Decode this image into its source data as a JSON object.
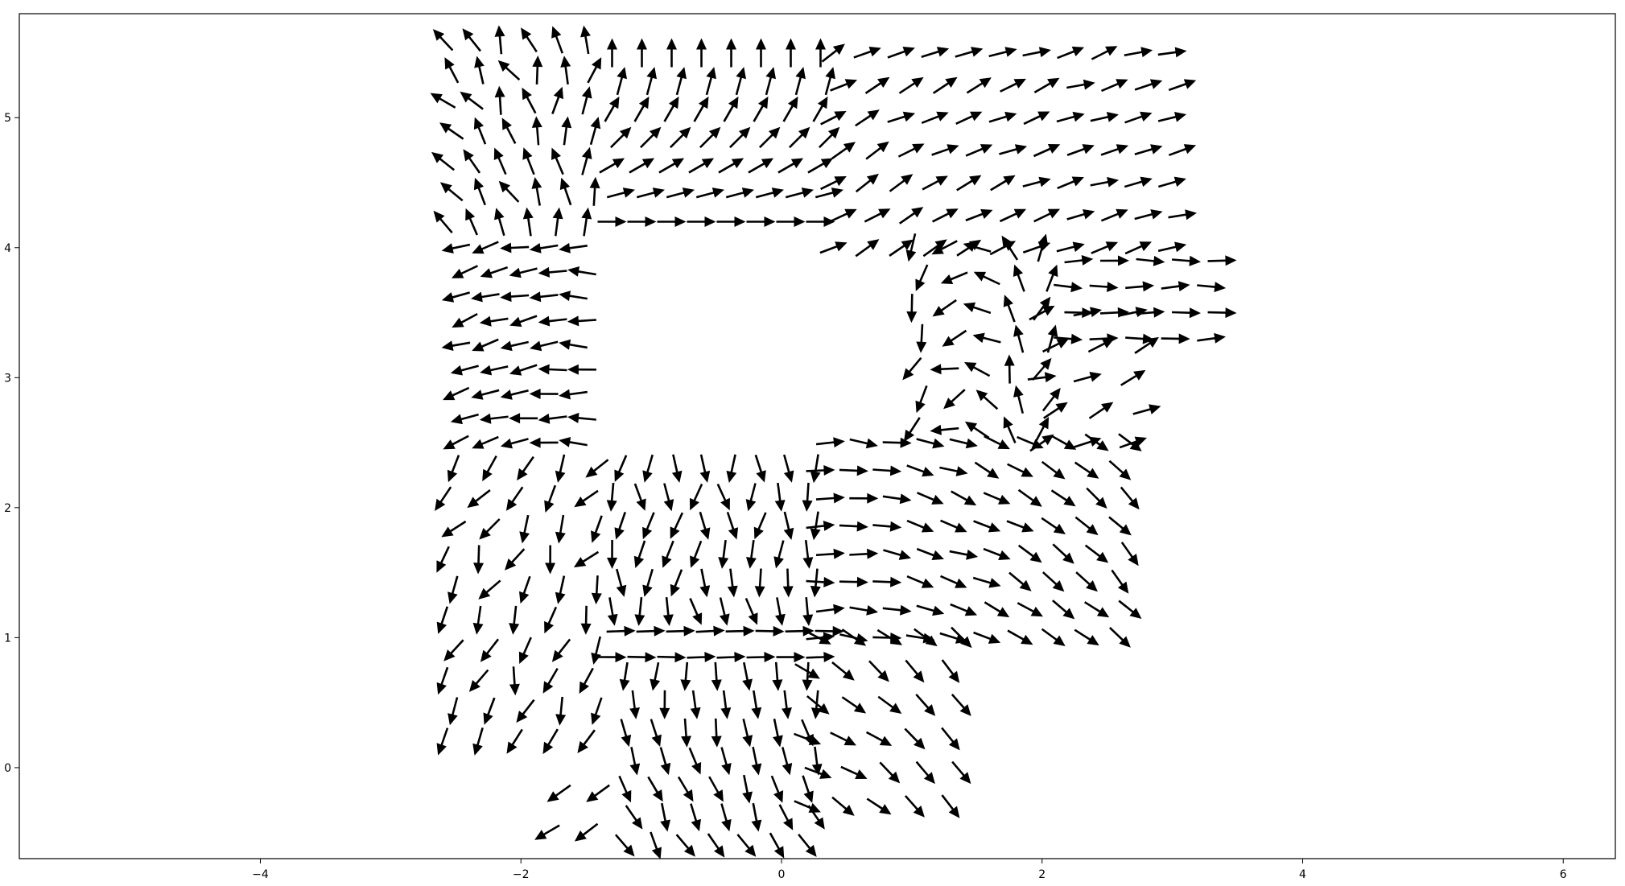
{
  "chart_data": {
    "type": "quiver",
    "title": "",
    "xlabel": "",
    "ylabel": "",
    "xlim": [
      -5.85,
      6.4
    ],
    "ylim": [
      -0.7,
      5.8
    ],
    "xticks": [
      -4,
      -2,
      0,
      2,
      4,
      6
    ],
    "yticks": [
      0,
      1,
      2,
      3,
      4,
      5
    ],
    "xtick_labels": [
      "−4",
      "−2",
      "0",
      "2",
      "4",
      "6"
    ],
    "ytick_labels": [
      "0",
      "1",
      "2",
      "3",
      "4",
      "5"
    ],
    "grid": false,
    "arrow_color": "#000000",
    "regions": [
      {
        "name": "top-center",
        "xlim": [
          -1.3,
          0.3
        ],
        "ylim": [
          4.2,
          5.5
        ],
        "rows": 7,
        "cols": 8,
        "angle_start": 0,
        "angle_end": 90,
        "angle_axis": "y"
      },
      {
        "name": "top-left",
        "xlim": [
          -2.6,
          -1.5
        ],
        "ylim": [
          4.2,
          5.6
        ],
        "rows": 7,
        "cols": 6,
        "angle_start": 135,
        "angle_end": 80,
        "angle_axis": "x",
        "jitter": 25
      },
      {
        "name": "left-band",
        "xlim": [
          -2.5,
          -1.6
        ],
        "ylim": [
          2.5,
          4.0
        ],
        "rows": 9,
        "cols": 5,
        "angle_start": 200,
        "angle_end": 180,
        "angle_axis": "x",
        "jitter": 10
      },
      {
        "name": "upper-right-fan",
        "xlim": [
          0.4,
          3.0
        ],
        "ylim": [
          4.0,
          5.5
        ],
        "rows": 7,
        "cols": 11,
        "angle_start": 30,
        "angle_end": 15,
        "angle_axis": "x",
        "jitter": 10
      },
      {
        "name": "right-lobe",
        "xlim": [
          2.2,
          3.3
        ],
        "ylim": [
          3.3,
          3.9
        ],
        "rows": 4,
        "cols": 5,
        "angle_start": 0,
        "angle_end": 0,
        "angle_axis": "x",
        "jitter": 8
      },
      {
        "name": "inner-curve",
        "xlim": [
          1.0,
          2.0
        ],
        "ylim": [
          2.6,
          4.0
        ],
        "rows": 7,
        "cols": 5,
        "angle_start": 250,
        "angle_end": 60,
        "angle_axis": "x",
        "jitter": 20
      },
      {
        "name": "right-edge",
        "xlim": [
          2.0,
          2.7
        ],
        "ylim": [
          2.5,
          3.5
        ],
        "rows": 5,
        "cols": 3,
        "angle_start": 20,
        "angle_end": 20,
        "angle_axis": "x",
        "jitter": 15
      },
      {
        "name": "mid-right-fan",
        "xlim": [
          0.3,
          2.6
        ],
        "ylim": [
          1.0,
          2.5
        ],
        "rows": 8,
        "cols": 10,
        "angle_start": 0,
        "angle_end": -45,
        "angle_axis": "x",
        "jitter": 10
      },
      {
        "name": "lower-right",
        "xlim": [
          0.2,
          1.3
        ],
        "ylim": [
          -0.3,
          1.0
        ],
        "rows": 6,
        "cols": 5,
        "angle_start": -30,
        "angle_end": -45,
        "angle_axis": "x",
        "jitter": 10
      },
      {
        "name": "center-bottom-down",
        "xlim": [
          -1.3,
          0.2
        ],
        "ylim": [
          1.2,
          2.3
        ],
        "rows": 6,
        "cols": 8,
        "angle_start": -90,
        "angle_end": -90,
        "angle_axis": "x",
        "jitter": 25
      },
      {
        "name": "horizontal-band",
        "xlim": [
          -1.3,
          0.3
        ],
        "ylim": [
          0.85,
          1.05
        ],
        "rows": 2,
        "cols": 8,
        "angle_start": 0,
        "angle_end": 0,
        "angle_axis": "x",
        "jitter": 3
      },
      {
        "name": "bottom-center",
        "xlim": [
          -1.2,
          0.2
        ],
        "ylim": [
          -0.6,
          0.7
        ],
        "rows": 7,
        "cols": 7,
        "angle_start": -60,
        "angle_end": -90,
        "angle_axis": "y",
        "jitter": 15
      },
      {
        "name": "lower-left",
        "xlim": [
          -2.6,
          -1.5
        ],
        "ylim": [
          0.2,
          2.3
        ],
        "rows": 10,
        "cols": 5,
        "angle_start": -100,
        "angle_end": -130,
        "angle_axis": "y",
        "jitter": 30
      },
      {
        "name": "bottom-left-small",
        "xlim": [
          -1.8,
          -1.5
        ],
        "ylim": [
          -0.5,
          -0.2
        ],
        "rows": 2,
        "cols": 2,
        "angle_start": 215,
        "angle_end": 215,
        "angle_axis": "x",
        "jitter": 5
      }
    ]
  }
}
